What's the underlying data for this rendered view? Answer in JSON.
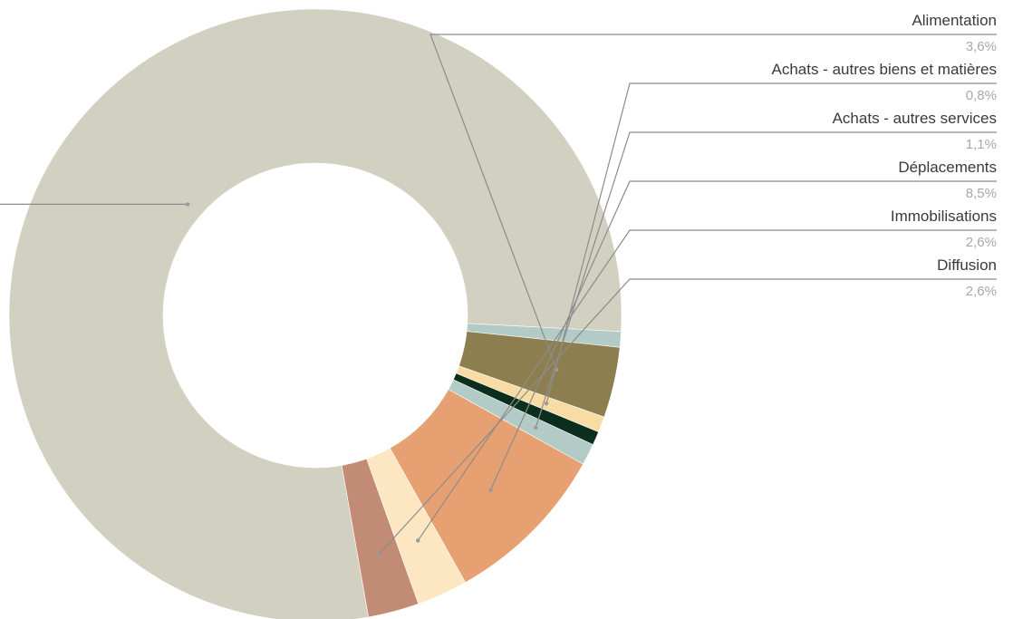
{
  "chart_data": {
    "type": "pie",
    "variant": "donut",
    "title": "",
    "legend": "none",
    "slices": [
      {
        "name": "",
        "value": "",
        "percent": 76.1,
        "color": "#d1d0c1",
        "labeled": false
      },
      {
        "name": "",
        "value": "",
        "percent": 0.8,
        "color": "#b2cbc6",
        "labeled": false
      },
      {
        "name": "Alimentation",
        "value": "3,6%",
        "percent": 3.6,
        "color": "#8d7e50",
        "labeled": true
      },
      {
        "name": "Achats - autres biens et matières",
        "value": "0,8%",
        "percent": 0.8,
        "color": "#f9dca4",
        "labeled": true
      },
      {
        "name": "",
        "value": "",
        "percent": 0.7,
        "color": "#0c2e1d",
        "labeled": false
      },
      {
        "name": "Achats - autres services",
        "value": "1,1%",
        "percent": 1.1,
        "color": "#b2cbc6",
        "labeled": true
      },
      {
        "name": "Déplacements",
        "value": "8,5%",
        "percent": 8.5,
        "color": "#e6a072",
        "labeled": true
      },
      {
        "name": "Immobilisations",
        "value": "2,6%",
        "percent": 2.6,
        "color": "#fde6c2",
        "labeled": true
      },
      {
        "name": "Diffusion",
        "value": "2,6%",
        "percent": 2.6,
        "color": "#c28b75",
        "labeled": true
      }
    ]
  }
}
